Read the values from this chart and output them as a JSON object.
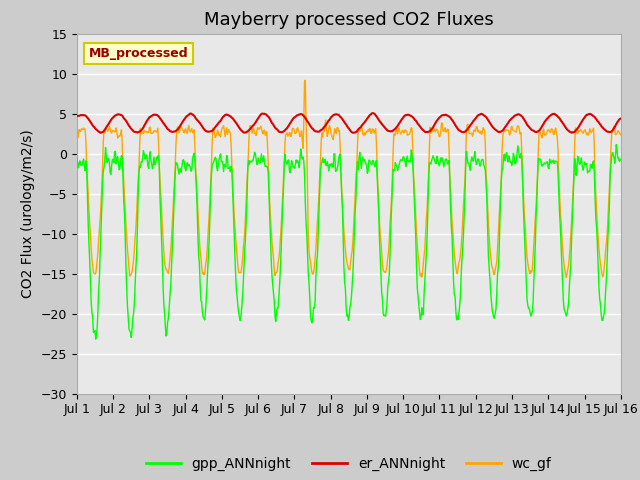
{
  "title": "Mayberry processed CO2 Fluxes",
  "ylabel": "CO2 Flux (urology/m2/s)",
  "ylim": [
    -30,
    15
  ],
  "yticks": [
    -30,
    -25,
    -20,
    -15,
    -10,
    -5,
    0,
    5,
    10,
    15
  ],
  "xlim": [
    0,
    15
  ],
  "xtick_labels": [
    "Jul 1",
    "Jul 2",
    "Jul 3",
    "Jul 4",
    "Jul 5",
    "Jul 6",
    "Jul 7",
    "Jul 8",
    "Jul 9",
    "Jul 10",
    "Jul 11",
    "Jul 12",
    "Jul 13",
    "Jul 14",
    "Jul 15",
    "Jul 16"
  ],
  "legend_label": "MB_processed",
  "legend_label_color": "#990000",
  "legend_box_color": "#ffffcc",
  "legend_box_edge": "#cccc00",
  "line_gpp_color": "#00ff00",
  "line_er_color": "#dd0000",
  "line_wc_color": "#ffa500",
  "bg_color": "#cccccc",
  "plot_bg_color": "#e8e8e8",
  "grid_color": "#ffffff",
  "title_fontsize": 13,
  "axis_fontsize": 10,
  "tick_fontsize": 9,
  "legend_fontsize": 10,
  "n_points": 720,
  "day_start": 0.25,
  "day_end": 0.72,
  "wc_night_val": 2.8,
  "wc_day_min": -15.0,
  "gpp_night_val": -1.0,
  "gpp_day_min_early": -23.0,
  "gpp_day_min_late": -20.5,
  "er_base": 3.8,
  "er_amp": 0.7,
  "spike_x": 6.28,
  "spike_val": 11.5
}
